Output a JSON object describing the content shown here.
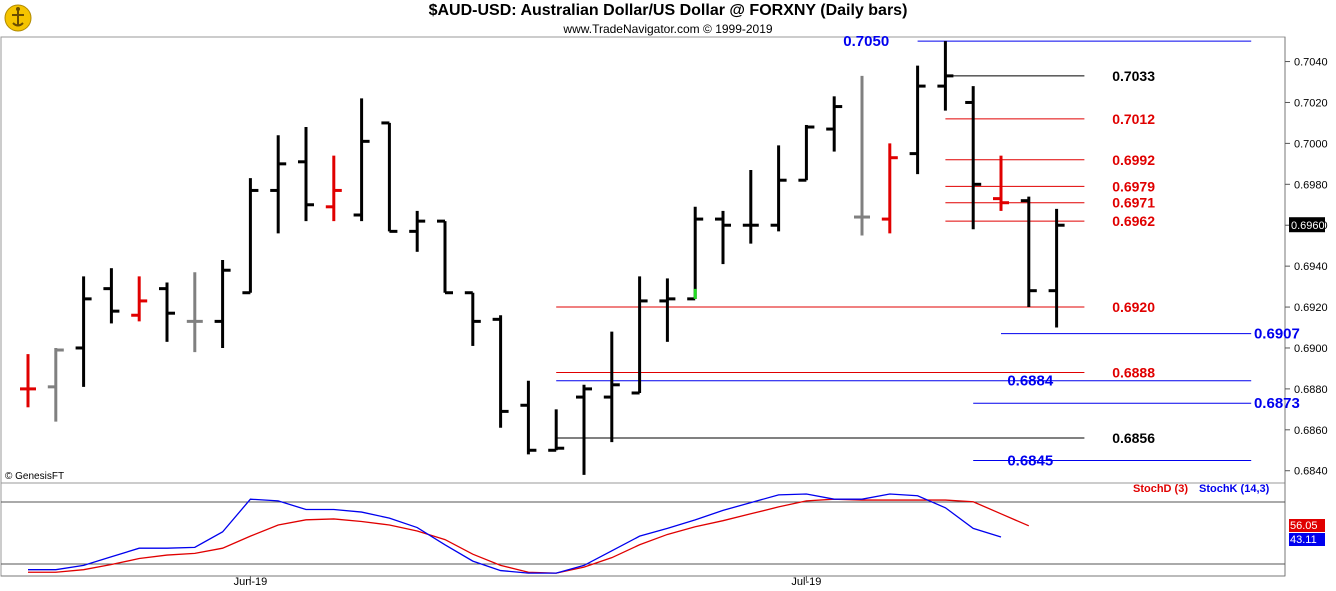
{
  "chart_data": {
    "type": "ohlc",
    "title": "$AUD-USD:  Australian Dollar/US Dollar @ FORXNY  (Daily bars)",
    "subtitle": "www.TradeNavigator.com © 1999-2019",
    "watermark": "© GenesisFT",
    "x_tick_labels": [
      {
        "label": "Jun-19",
        "index": 8
      },
      {
        "label": "Jul-19",
        "index": 28
      }
    ],
    "y_ticks": [
      "0.6840",
      "0.6860",
      "0.6880",
      "0.6900",
      "0.6920",
      "0.6940",
      "0.6960",
      "0.6980",
      "0.7000",
      "0.7020",
      "0.7040"
    ],
    "ylim": [
      0.6834,
      0.7052
    ],
    "last_price_label": "0.6960",
    "bars": [
      {
        "o": 0.688,
        "h": 0.6897,
        "l": 0.6871,
        "c": 0.688,
        "color": "#e00000"
      },
      {
        "o": 0.6881,
        "h": 0.69,
        "l": 0.6864,
        "c": 0.6899,
        "color": "#808080"
      },
      {
        "o": 0.69,
        "h": 0.6935,
        "l": 0.6881,
        "c": 0.6924,
        "color": "#000000"
      },
      {
        "o": 0.6929,
        "h": 0.6939,
        "l": 0.6912,
        "c": 0.6918,
        "color": "#000000"
      },
      {
        "o": 0.6916,
        "h": 0.6935,
        "l": 0.6913,
        "c": 0.6923,
        "color": "#e00000"
      },
      {
        "o": 0.6929,
        "h": 0.6932,
        "l": 0.6903,
        "c": 0.6917,
        "color": "#000000"
      },
      {
        "o": 0.6913,
        "h": 0.6937,
        "l": 0.6898,
        "c": 0.6913,
        "color": "#808080"
      },
      {
        "o": 0.6913,
        "h": 0.6943,
        "l": 0.69,
        "c": 0.6938,
        "color": "#000000"
      },
      {
        "o": 0.6927,
        "h": 0.6983,
        "l": 0.6927,
        "c": 0.6977,
        "color": "#000000"
      },
      {
        "o": 0.6977,
        "h": 0.7004,
        "l": 0.6956,
        "c": 0.699,
        "color": "#000000"
      },
      {
        "o": 0.6991,
        "h": 0.7008,
        "l": 0.6962,
        "c": 0.697,
        "color": "#000000"
      },
      {
        "o": 0.6969,
        "h": 0.6994,
        "l": 0.6962,
        "c": 0.6977,
        "color": "#e00000"
      },
      {
        "o": 0.6965,
        "h": 0.7022,
        "l": 0.6962,
        "c": 0.7001,
        "color": "#000000"
      },
      {
        "o": 0.701,
        "h": 0.701,
        "l": 0.6957,
        "c": 0.6957,
        "color": "#000000"
      },
      {
        "o": 0.6957,
        "h": 0.6967,
        "l": 0.6947,
        "c": 0.6962,
        "color": "#000000"
      },
      {
        "o": 0.6962,
        "h": 0.6962,
        "l": 0.6927,
        "c": 0.6927,
        "color": "#000000"
      },
      {
        "o": 0.6927,
        "h": 0.6927,
        "l": 0.6901,
        "c": 0.6913,
        "color": "#000000"
      },
      {
        "o": 0.6914,
        "h": 0.6916,
        "l": 0.6861,
        "c": 0.6869,
        "color": "#000000"
      },
      {
        "o": 0.6872,
        "h": 0.6884,
        "l": 0.6848,
        "c": 0.685,
        "color": "#000000"
      },
      {
        "o": 0.685,
        "h": 0.687,
        "l": 0.685,
        "c": 0.6851,
        "color": "#000000"
      },
      {
        "o": 0.6876,
        "h": 0.6882,
        "l": 0.6838,
        "c": 0.688,
        "color": "#000000"
      },
      {
        "o": 0.6876,
        "h": 0.6908,
        "l": 0.6854,
        "c": 0.6882,
        "color": "#000000"
      },
      {
        "o": 0.6878,
        "h": 0.6935,
        "l": 0.6878,
        "c": 0.6923,
        "color": "#000000"
      },
      {
        "o": 0.6923,
        "h": 0.6934,
        "l": 0.6903,
        "c": 0.6924,
        "color": "#000000"
      },
      {
        "o": 0.6924,
        "h": 0.6969,
        "l": 0.6924,
        "c": 0.6963,
        "color": "#000000",
        "low_tick_color": "#22dd22"
      },
      {
        "o": 0.6963,
        "h": 0.6967,
        "l": 0.6941,
        "c": 0.696,
        "color": "#000000"
      },
      {
        "o": 0.696,
        "h": 0.6987,
        "l": 0.6951,
        "c": 0.696,
        "color": "#000000"
      },
      {
        "o": 0.696,
        "h": 0.6999,
        "l": 0.6957,
        "c": 0.6982,
        "color": "#000000"
      },
      {
        "o": 0.6982,
        "h": 0.7009,
        "l": 0.6982,
        "c": 0.7008,
        "color": "#000000"
      },
      {
        "o": 0.7007,
        "h": 0.7023,
        "l": 0.6996,
        "c": 0.7018,
        "color": "#000000"
      },
      {
        "o": 0.6964,
        "h": 0.7033,
        "l": 0.6955,
        "c": 0.6964,
        "color": "#808080"
      },
      {
        "o": 0.6963,
        "h": 0.7,
        "l": 0.6956,
        "c": 0.6993,
        "color": "#e00000"
      },
      {
        "o": 0.6995,
        "h": 0.7038,
        "l": 0.6985,
        "c": 0.7028,
        "color": "#000000"
      },
      {
        "o": 0.7028,
        "h": 0.705,
        "l": 0.7016,
        "c": 0.7033,
        "color": "#000000"
      },
      {
        "o": 0.702,
        "h": 0.7028,
        "l": 0.6958,
        "c": 0.698,
        "color": "#000000"
      },
      {
        "o": 0.6973,
        "h": 0.6994,
        "l": 0.6967,
        "c": 0.6971,
        "color": "#e00000"
      },
      {
        "o": 0.6972,
        "h": 0.6974,
        "l": 0.692,
        "c": 0.6928,
        "color": "#000000"
      },
      {
        "o": 0.6928,
        "h": 0.6968,
        "l": 0.691,
        "c": 0.696,
        "color": "#000000"
      }
    ],
    "levels": [
      {
        "value": 0.705,
        "label": "0.7050",
        "color": "#0000ee",
        "from": 32,
        "to": 44,
        "label_pos": "left",
        "label_at": 29
      },
      {
        "value": 0.7033,
        "label": "0.7033",
        "color": "#000000",
        "from": 33,
        "to": 38,
        "label_pos": "right",
        "label_at": 39
      },
      {
        "value": 0.7012,
        "label": "0.7012",
        "color": "#e00000",
        "from": 33,
        "to": 38,
        "label_pos": "right",
        "label_at": 39
      },
      {
        "value": 0.6992,
        "label": "0.6992",
        "color": "#e00000",
        "from": 33,
        "to": 38,
        "label_pos": "right",
        "label_at": 39
      },
      {
        "value": 0.6979,
        "label": "0.6979",
        "color": "#e00000",
        "from": 33,
        "to": 38,
        "label_pos": "right",
        "label_at": 39
      },
      {
        "value": 0.6971,
        "label": "0.6971",
        "color": "#e00000",
        "from": 33,
        "to": 38,
        "label_pos": "right",
        "label_at": 39
      },
      {
        "value": 0.6962,
        "label": "0.6962",
        "color": "#e00000",
        "from": 33,
        "to": 38,
        "label_pos": "right",
        "label_at": 39
      },
      {
        "value": 0.692,
        "label": "0.6920",
        "color": "#e00000",
        "from": 19,
        "to": 38,
        "label_pos": "right",
        "label_at": 39
      },
      {
        "value": 0.6907,
        "label": "0.6907",
        "color": "#0000ee",
        "from": 35,
        "to": 44,
        "label_pos": "right",
        "label_at": 44.1
      },
      {
        "value": 0.6888,
        "label": "0.6888",
        "color": "#e00000",
        "from": 19,
        "to": 38,
        "label_pos": "right",
        "label_at": 39
      },
      {
        "value": 0.6884,
        "label": "0.6884",
        "color": "#0000ee",
        "from": 19,
        "to": 44,
        "label_pos": "left",
        "label_at": 34.9
      },
      {
        "value": 0.6873,
        "label": "0.6873",
        "color": "#0000ee",
        "from": 34,
        "to": 44,
        "label_pos": "right",
        "label_at": 44.1
      },
      {
        "value": 0.6856,
        "label": "0.6856",
        "color": "#000000",
        "from": 19,
        "to": 38,
        "label_pos": "right",
        "label_at": 39
      },
      {
        "value": 0.6845,
        "label": "0.6845",
        "color": "#0000ee",
        "from": 34,
        "to": 44,
        "label_pos": "left",
        "label_at": 34.9
      }
    ],
    "indicator": {
      "name": "Stochastic",
      "legend": [
        {
          "label": "StochD (3)",
          "color": "#e00000"
        },
        {
          "label": "StochK (14,3)",
          "color": "#0000ee"
        }
      ],
      "ylim": [
        0,
        100
      ],
      "series": [
        {
          "name": "StochD (3)",
          "color": "#e00000",
          "last_label": "56.05",
          "values": [
            2,
            2,
            5,
            11,
            18,
            22,
            24,
            30,
            44,
            57,
            63,
            64,
            61,
            57,
            50,
            40,
            23,
            10,
            2,
            1,
            8,
            19,
            34,
            46,
            55,
            62,
            70,
            78,
            85,
            87,
            86,
            86,
            86,
            86,
            84,
            70,
            56
          ]
        },
        {
          "name": "StochK (14,3)",
          "color": "#0000ee",
          "last_label": "43.11",
          "values": [
            5,
            5,
            10,
            20,
            30,
            30,
            31,
            49,
            87,
            85,
            75,
            75,
            72,
            65,
            54,
            34,
            15,
            4,
            1,
            1,
            10,
            27,
            44,
            53,
            63,
            74,
            83,
            92,
            93,
            87,
            87,
            93,
            91,
            77,
            53,
            43
          ]
        }
      ]
    }
  }
}
